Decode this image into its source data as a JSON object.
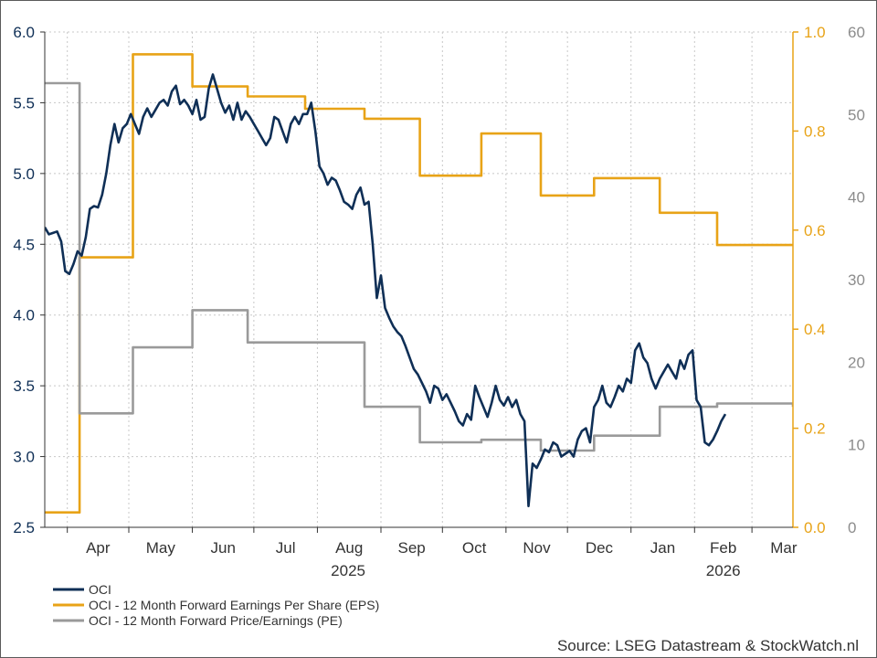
{
  "chart_data": {
    "type": "line",
    "x_month_labels": [
      "Apr",
      "May",
      "Jun",
      "Jul",
      "Aug",
      "Sep",
      "Oct",
      "Nov",
      "Dec",
      "Jan",
      "Feb",
      "Mar"
    ],
    "x_year_labels": [
      "2025",
      "2026"
    ],
    "x_range": [
      "2025-03-21",
      "2026-03-21"
    ],
    "grid": true,
    "legend_position": "bottom-left",
    "axes": {
      "left": {
        "ylim": [
          2.5,
          6.0
        ],
        "ticks": [
          "2.5",
          "3.0",
          "3.5",
          "4.0",
          "4.5",
          "5.0",
          "5.5",
          "6.0"
        ],
        "color": "#0f2f56"
      },
      "right_inner": {
        "ylim": [
          0.0,
          1.0
        ],
        "ticks": [
          "0.0",
          "0.2",
          "0.4",
          "0.6",
          "0.8",
          "1.0"
        ],
        "color": "#e8a317"
      },
      "right_outer": {
        "ylim": [
          0,
          60
        ],
        "ticks": [
          "0",
          "10",
          "20",
          "30",
          "40",
          "50",
          "60"
        ],
        "color": "#8c8c8c"
      }
    },
    "series": [
      {
        "name": "OCI",
        "axis": "left",
        "color": "#0f2f56",
        "points": [
          [
            "2025-03-21",
            4.62
          ],
          [
            "2025-03-23",
            4.57
          ],
          [
            "2025-03-25",
            4.58
          ],
          [
            "2025-03-27",
            4.59
          ],
          [
            "2025-03-29",
            4.52
          ],
          [
            "2025-03-31",
            4.31
          ],
          [
            "2025-04-02",
            4.29
          ],
          [
            "2025-04-04",
            4.36
          ],
          [
            "2025-04-06",
            4.45
          ],
          [
            "2025-04-08",
            4.42
          ],
          [
            "2025-04-10",
            4.55
          ],
          [
            "2025-04-12",
            4.75
          ],
          [
            "2025-04-14",
            4.77
          ],
          [
            "2025-04-16",
            4.76
          ],
          [
            "2025-04-18",
            4.85
          ],
          [
            "2025-04-20",
            5.0
          ],
          [
            "2025-04-22",
            5.2
          ],
          [
            "2025-04-24",
            5.35
          ],
          [
            "2025-04-26",
            5.22
          ],
          [
            "2025-04-28",
            5.32
          ],
          [
            "2025-04-30",
            5.35
          ],
          [
            "2025-05-02",
            5.42
          ],
          [
            "2025-05-04",
            5.35
          ],
          [
            "2025-05-06",
            5.28
          ],
          [
            "2025-05-08",
            5.4
          ],
          [
            "2025-05-10",
            5.46
          ],
          [
            "2025-05-12",
            5.4
          ],
          [
            "2025-05-14",
            5.45
          ],
          [
            "2025-05-16",
            5.5
          ],
          [
            "2025-05-18",
            5.52
          ],
          [
            "2025-05-20",
            5.48
          ],
          [
            "2025-05-22",
            5.58
          ],
          [
            "2025-05-24",
            5.62
          ],
          [
            "2025-05-26",
            5.49
          ],
          [
            "2025-05-28",
            5.52
          ],
          [
            "2025-05-30",
            5.48
          ],
          [
            "2025-06-01",
            5.42
          ],
          [
            "2025-06-03",
            5.52
          ],
          [
            "2025-06-05",
            5.38
          ],
          [
            "2025-06-07",
            5.4
          ],
          [
            "2025-06-09",
            5.6
          ],
          [
            "2025-06-11",
            5.7
          ],
          [
            "2025-06-13",
            5.6
          ],
          [
            "2025-06-15",
            5.5
          ],
          [
            "2025-06-17",
            5.43
          ],
          [
            "2025-06-19",
            5.48
          ],
          [
            "2025-06-21",
            5.38
          ],
          [
            "2025-06-23",
            5.5
          ],
          [
            "2025-06-25",
            5.38
          ],
          [
            "2025-06-27",
            5.44
          ],
          [
            "2025-06-29",
            5.4
          ],
          [
            "2025-07-01",
            5.35
          ],
          [
            "2025-07-03",
            5.3
          ],
          [
            "2025-07-05",
            5.25
          ],
          [
            "2025-07-07",
            5.2
          ],
          [
            "2025-07-09",
            5.25
          ],
          [
            "2025-07-11",
            5.4
          ],
          [
            "2025-07-13",
            5.38
          ],
          [
            "2025-07-15",
            5.3
          ],
          [
            "2025-07-17",
            5.22
          ],
          [
            "2025-07-19",
            5.35
          ],
          [
            "2025-07-21",
            5.4
          ],
          [
            "2025-07-23",
            5.35
          ],
          [
            "2025-07-25",
            5.42
          ],
          [
            "2025-07-27",
            5.42
          ],
          [
            "2025-07-29",
            5.5
          ],
          [
            "2025-07-31",
            5.3
          ],
          [
            "2025-08-02",
            5.05
          ],
          [
            "2025-08-04",
            5.0
          ],
          [
            "2025-08-06",
            4.92
          ],
          [
            "2025-08-08",
            4.97
          ],
          [
            "2025-08-10",
            4.95
          ],
          [
            "2025-08-12",
            4.88
          ],
          [
            "2025-08-14",
            4.8
          ],
          [
            "2025-08-16",
            4.78
          ],
          [
            "2025-08-18",
            4.75
          ],
          [
            "2025-08-20",
            4.85
          ],
          [
            "2025-08-22",
            4.9
          ],
          [
            "2025-08-24",
            4.78
          ],
          [
            "2025-08-26",
            4.8
          ],
          [
            "2025-08-28",
            4.5
          ],
          [
            "2025-08-30",
            4.12
          ],
          [
            "2025-09-01",
            4.28
          ],
          [
            "2025-09-03",
            4.05
          ],
          [
            "2025-09-05",
            3.98
          ],
          [
            "2025-09-07",
            3.92
          ],
          [
            "2025-09-09",
            3.88
          ],
          [
            "2025-09-11",
            3.85
          ],
          [
            "2025-09-13",
            3.78
          ],
          [
            "2025-09-15",
            3.7
          ],
          [
            "2025-09-17",
            3.62
          ],
          [
            "2025-09-19",
            3.58
          ],
          [
            "2025-09-21",
            3.52
          ],
          [
            "2025-09-23",
            3.46
          ],
          [
            "2025-09-25",
            3.38
          ],
          [
            "2025-09-27",
            3.5
          ],
          [
            "2025-09-29",
            3.48
          ],
          [
            "2025-10-01",
            3.4
          ],
          [
            "2025-10-03",
            3.44
          ],
          [
            "2025-10-05",
            3.38
          ],
          [
            "2025-10-07",
            3.32
          ],
          [
            "2025-10-09",
            3.25
          ],
          [
            "2025-10-11",
            3.22
          ],
          [
            "2025-10-13",
            3.3
          ],
          [
            "2025-10-15",
            3.26
          ],
          [
            "2025-10-17",
            3.5
          ],
          [
            "2025-10-19",
            3.42
          ],
          [
            "2025-10-21",
            3.35
          ],
          [
            "2025-10-23",
            3.28
          ],
          [
            "2025-10-25",
            3.38
          ],
          [
            "2025-10-27",
            3.5
          ],
          [
            "2025-10-29",
            3.4
          ],
          [
            "2025-10-31",
            3.36
          ],
          [
            "2025-11-02",
            3.42
          ],
          [
            "2025-11-04",
            3.35
          ],
          [
            "2025-11-06",
            3.4
          ],
          [
            "2025-11-08",
            3.3
          ],
          [
            "2025-11-10",
            3.25
          ],
          [
            "2025-11-12",
            2.65
          ],
          [
            "2025-11-14",
            2.95
          ],
          [
            "2025-11-16",
            2.92
          ],
          [
            "2025-11-18",
            2.98
          ],
          [
            "2025-11-20",
            3.05
          ],
          [
            "2025-11-22",
            3.03
          ],
          [
            "2025-11-24",
            3.1
          ],
          [
            "2025-11-26",
            3.08
          ],
          [
            "2025-11-28",
            3.0
          ],
          [
            "2025-11-30",
            3.02
          ],
          [
            "2025-12-02",
            3.04
          ],
          [
            "2025-12-04",
            3.0
          ],
          [
            "2025-12-06",
            3.12
          ],
          [
            "2025-12-08",
            3.18
          ],
          [
            "2025-12-10",
            3.2
          ],
          [
            "2025-12-12",
            3.1
          ],
          [
            "2025-12-14",
            3.35
          ],
          [
            "2025-12-16",
            3.4
          ],
          [
            "2025-12-18",
            3.5
          ],
          [
            "2025-12-20",
            3.38
          ],
          [
            "2025-12-22",
            3.35
          ],
          [
            "2025-12-24",
            3.42
          ],
          [
            "2025-12-26",
            3.5
          ],
          [
            "2025-12-28",
            3.46
          ],
          [
            "2025-12-30",
            3.55
          ],
          [
            "2026-01-01",
            3.52
          ],
          [
            "2026-01-03",
            3.75
          ],
          [
            "2026-01-05",
            3.8
          ],
          [
            "2026-01-07",
            3.7
          ],
          [
            "2026-01-09",
            3.66
          ],
          [
            "2026-01-11",
            3.55
          ],
          [
            "2026-01-13",
            3.48
          ],
          [
            "2026-01-15",
            3.55
          ],
          [
            "2026-01-17",
            3.6
          ],
          [
            "2026-01-19",
            3.65
          ],
          [
            "2026-01-21",
            3.6
          ],
          [
            "2026-01-23",
            3.55
          ],
          [
            "2026-01-25",
            3.68
          ],
          [
            "2026-01-27",
            3.62
          ],
          [
            "2026-01-29",
            3.72
          ],
          [
            "2026-01-31",
            3.75
          ],
          [
            "2026-02-02",
            3.4
          ],
          [
            "2026-02-04",
            3.35
          ],
          [
            "2026-02-06",
            3.1
          ],
          [
            "2026-02-08",
            3.08
          ],
          [
            "2026-02-10",
            3.12
          ],
          [
            "2026-02-12",
            3.18
          ],
          [
            "2026-02-14",
            3.25
          ],
          [
            "2026-02-16",
            3.3
          ]
        ]
      },
      {
        "name": "OCI - 12 Month Forward Earnings Per Share (EPS)",
        "axis": "right_inner",
        "color": "#e8a317",
        "step": true,
        "points": [
          [
            "2025-03-21",
            0.03
          ],
          [
            "2025-04-07",
            0.545
          ],
          [
            "2025-05-03",
            0.955
          ],
          [
            "2025-06-01",
            0.89
          ],
          [
            "2025-06-28",
            0.87
          ],
          [
            "2025-07-26",
            0.845
          ],
          [
            "2025-08-24",
            0.825
          ],
          [
            "2025-09-20",
            0.71
          ],
          [
            "2025-10-20",
            0.795
          ],
          [
            "2025-11-18",
            0.67
          ],
          [
            "2025-12-14",
            0.705
          ],
          [
            "2026-01-15",
            0.635
          ],
          [
            "2026-02-12",
            0.57
          ],
          [
            "2026-03-21",
            0.57
          ]
        ]
      },
      {
        "name": "OCI - 12 Month Forward Price/Earnings (PE)",
        "axis": "right_outer",
        "color": "#9a9a9a",
        "step": true,
        "points": [
          [
            "2025-03-21",
            53.8
          ],
          [
            "2025-04-07",
            13.8
          ],
          [
            "2025-05-03",
            21.8
          ],
          [
            "2025-06-01",
            26.3
          ],
          [
            "2025-06-28",
            22.4
          ],
          [
            "2025-07-26",
            22.4
          ],
          [
            "2025-08-24",
            14.6
          ],
          [
            "2025-09-20",
            10.3
          ],
          [
            "2025-10-20",
            10.6
          ],
          [
            "2025-11-18",
            9.3
          ],
          [
            "2025-12-14",
            11.1
          ],
          [
            "2026-01-15",
            14.6
          ],
          [
            "2026-02-12",
            15.0
          ],
          [
            "2026-03-21",
            14.6
          ]
        ]
      }
    ],
    "source": "Source: LSEG Datastream & StockWatch.nl"
  }
}
